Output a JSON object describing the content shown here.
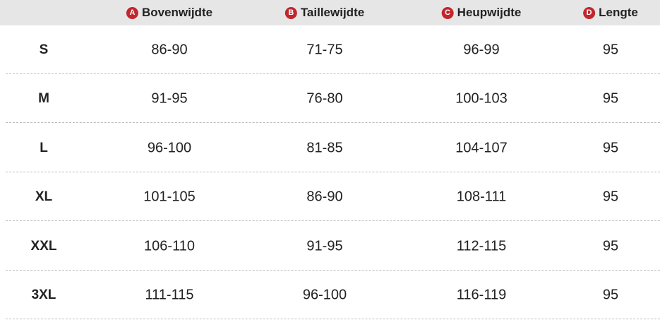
{
  "header": {
    "columns": [
      {
        "badge": "A",
        "label": "Bovenwijdte"
      },
      {
        "badge": "B",
        "label": "Taillewijdte"
      },
      {
        "badge": "C",
        "label": "Heupwijdte"
      },
      {
        "badge": "D",
        "label": "Lengte"
      }
    ]
  },
  "table": {
    "rows": [
      [
        "S",
        "86-90",
        "71-75",
        "96-99",
        "95"
      ],
      [
        "M",
        "91-95",
        "76-80",
        "100-103",
        "95"
      ],
      [
        "L",
        "96-100",
        "81-85",
        "104-107",
        "95"
      ],
      [
        "XL",
        "101-105",
        "86-90",
        "108-111",
        "95"
      ],
      [
        "XXL",
        "106-110",
        "91-95",
        "112-115",
        "95"
      ],
      [
        "3XL",
        "111-115",
        "96-100",
        "116-119",
        "95"
      ]
    ]
  }
}
